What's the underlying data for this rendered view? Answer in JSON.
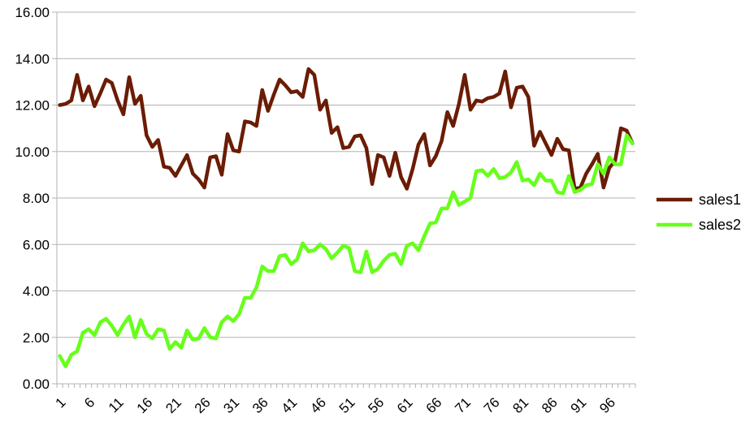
{
  "chart_data": {
    "type": "line",
    "title": "",
    "xlabel": "",
    "ylabel": "",
    "ylim": [
      0,
      16
    ],
    "y_ticks": [
      "0.00",
      "2.00",
      "4.00",
      "6.00",
      "8.00",
      "10.00",
      "12.00",
      "14.00",
      "16.00"
    ],
    "x_tick_labels": [
      "1",
      "6",
      "11",
      "16",
      "21",
      "26",
      "31",
      "36",
      "41",
      "46",
      "51",
      "56",
      "61",
      "66",
      "71",
      "76",
      "81",
      "86",
      "91",
      "96"
    ],
    "x_count": 100,
    "grid": "horizontal",
    "legend_position": "right",
    "series": [
      {
        "name": "sales1",
        "color": "#6b1c04",
        "values": [
          12.0,
          12.05,
          12.2,
          13.3,
          12.2,
          12.8,
          11.95,
          12.5,
          13.1,
          12.95,
          12.2,
          11.6,
          13.2,
          12.05,
          12.4,
          10.7,
          10.2,
          10.5,
          9.35,
          9.3,
          8.95,
          9.4,
          9.85,
          9.05,
          8.8,
          8.45,
          9.75,
          9.8,
          9.0,
          10.75,
          10.05,
          10.0,
          11.3,
          11.25,
          11.1,
          12.65,
          11.75,
          12.45,
          13.1,
          12.85,
          12.55,
          12.6,
          12.35,
          13.55,
          13.3,
          11.8,
          12.2,
          10.8,
          11.05,
          10.15,
          10.2,
          10.65,
          10.7,
          10.15,
          8.6,
          9.85,
          9.75,
          8.95,
          9.95,
          8.9,
          8.4,
          9.25,
          10.3,
          10.75,
          9.4,
          9.8,
          10.45,
          11.7,
          11.1,
          12.05,
          13.3,
          11.8,
          12.2,
          12.15,
          12.3,
          12.35,
          12.5,
          13.45,
          11.9,
          12.75,
          12.8,
          12.35,
          10.25,
          10.85,
          10.35,
          9.85,
          10.55,
          10.1,
          10.05,
          8.4,
          8.45,
          9.05,
          9.45,
          9.9,
          8.45,
          9.3,
          9.6,
          11.0,
          10.9,
          10.35
        ]
      },
      {
        "name": "sales2",
        "color": "#66ff1a",
        "values": [
          1.2,
          0.75,
          1.25,
          1.4,
          2.2,
          2.35,
          2.1,
          2.65,
          2.8,
          2.5,
          2.1,
          2.55,
          2.9,
          2.0,
          2.75,
          2.15,
          1.95,
          2.35,
          2.3,
          1.5,
          1.8,
          1.55,
          2.3,
          1.9,
          1.95,
          2.4,
          2.0,
          1.95,
          2.65,
          2.9,
          2.7,
          3.0,
          3.7,
          3.7,
          4.15,
          5.05,
          4.85,
          4.85,
          5.5,
          5.55,
          5.15,
          5.35,
          6.05,
          5.7,
          5.75,
          6.0,
          5.8,
          5.4,
          5.65,
          5.95,
          5.85,
          4.85,
          4.8,
          5.7,
          4.8,
          4.95,
          5.3,
          5.55,
          5.6,
          5.15,
          5.95,
          6.05,
          5.75,
          6.35,
          6.9,
          6.95,
          7.55,
          7.55,
          8.25,
          7.7,
          7.85,
          8.0,
          9.15,
          9.2,
          8.95,
          9.25,
          8.85,
          8.9,
          9.1,
          9.55,
          8.75,
          8.8,
          8.55,
          9.05,
          8.75,
          8.75,
          8.25,
          8.2,
          8.95,
          8.25,
          8.35,
          8.55,
          8.6,
          9.45,
          9.05,
          9.75,
          9.45,
          9.45,
          10.7,
          10.35
        ]
      }
    ]
  }
}
